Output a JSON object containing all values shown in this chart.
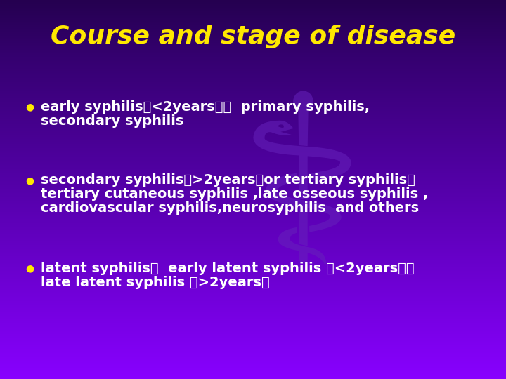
{
  "title": "Course and stage of disease",
  "title_color": "#FFE800",
  "title_fontsize": 26,
  "bullet_color": "#FFE800",
  "text_color": "#FFFFFF",
  "text_fontsize": 14,
  "bullets": [
    {
      "line1": "early syphilis（<2years）：  primary syphilis,",
      "line2": "secondary syphilis"
    },
    {
      "line1": "secondary syphilis（>2years）or tertiary syphilis：",
      "line2": "tertiary cutaneous syphilis ,late osseous syphilis ,",
      "line3": "cardiovascular syphilis,neurosyphilis  and others"
    },
    {
      "line1": "latent syphilis：  early latent syphilis （<2years），",
      "line2": "late latent syphilis （>2years）"
    }
  ]
}
